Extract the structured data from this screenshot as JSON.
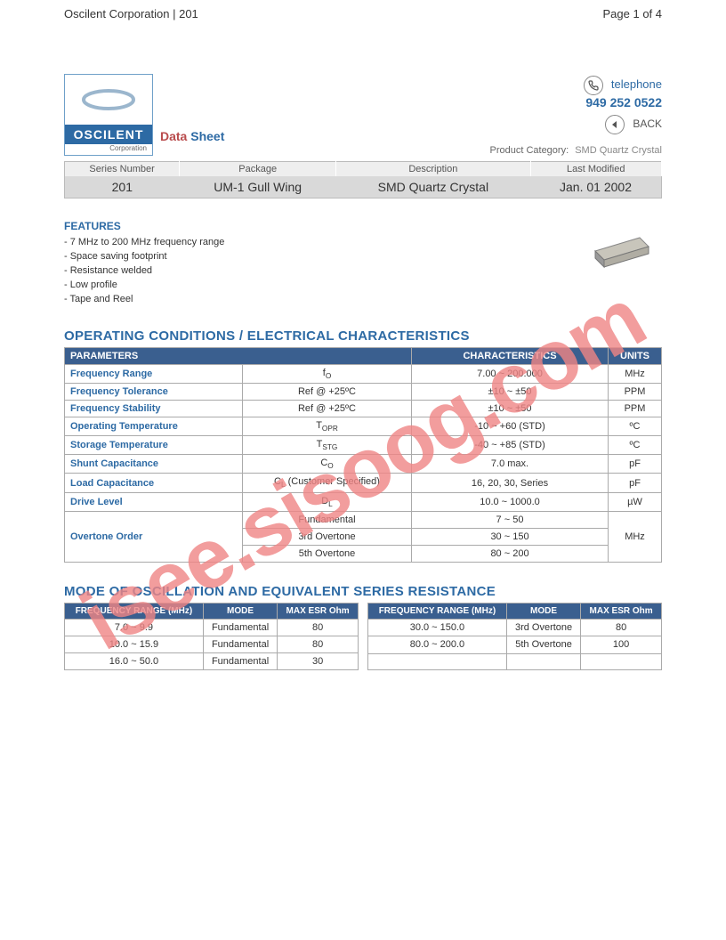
{
  "header": {
    "left": "Oscilent Corporation | 201",
    "right": "Page 1 of 4"
  },
  "logo": {
    "name": "OSCILENT",
    "corp": "Corporation"
  },
  "data_sheet": {
    "word1": "Data",
    "word2": "Sheet"
  },
  "contact": {
    "tel_label": "telephone",
    "tel_number": "949 252 0522",
    "back_label": "BACK"
  },
  "product_category": {
    "label": "Product Category:",
    "value": "SMD Quartz Crystal"
  },
  "info": {
    "headers": [
      "Series Number",
      "Package",
      "Description",
      "Last Modified"
    ],
    "values": [
      "201",
      "UM-1 Gull Wing",
      "SMD Quartz Crystal",
      "Jan. 01 2002"
    ]
  },
  "features": {
    "title": "FEATURES",
    "items": [
      "- 7 MHz to 200 MHz frequency range",
      "- Space saving footprint",
      "- Resistance welded",
      "- Low profile",
      "- Tape and Reel"
    ]
  },
  "sections": {
    "operating": "OPERATING CONDITIONS / ELECTRICAL CHARACTERISTICS",
    "mode": "MODE OF OSCILLATION AND EQUIVALENT SERIES RESISTANCE"
  },
  "spec": {
    "headers": {
      "param": "PARAMETERS",
      "char": "CHARACTERISTICS",
      "units": "UNITS"
    },
    "rows": [
      {
        "p": "Frequency Range",
        "s": "f",
        "sub": "O",
        "c": "7.00 ~ 200.000",
        "u": "MHz"
      },
      {
        "p": "Frequency Tolerance",
        "s": "Ref @ +25ºC",
        "c": "±10 ~ ±50",
        "u": "PPM"
      },
      {
        "p": "Frequency Stability",
        "s": "Ref @ +25ºC",
        "c": "±10 ~ ±50",
        "u": "PPM"
      },
      {
        "p": "Operating Temperature",
        "s": "T",
        "sub": "OPR",
        "c": "-10 ~ +60 (STD)",
        "u": "ºC"
      },
      {
        "p": "Storage Temperature",
        "s": "T",
        "sub": "STG",
        "c": "-40 ~ +85 (STD)",
        "u": "ºC"
      },
      {
        "p": "Shunt Capacitance",
        "s": "C",
        "sub": "O",
        "c": "7.0 max.",
        "u": "pF"
      },
      {
        "p": "Load Capacitance",
        "s": "C",
        "sub": "L",
        "stail": " (Customer Specified)",
        "c": "16, 20, 30, Series",
        "u": "pF"
      },
      {
        "p": "Drive Level",
        "s": "D",
        "sub": "L",
        "c": "10.0 ~ 1000.0",
        "u": "µW"
      }
    ],
    "overtone": {
      "p": "Overtone Order",
      "rows": [
        {
          "s": "Fundamental",
          "c": "7 ~ 50"
        },
        {
          "s": "3rd Overtone",
          "c": "30 ~ 150"
        },
        {
          "s": "5th Overtone",
          "c": "80 ~ 200"
        }
      ],
      "u": "MHz"
    }
  },
  "mode": {
    "headers": [
      "FREQUENCY RANGE (MHz)",
      "MODE",
      "MAX ESR Ohm"
    ],
    "left": [
      {
        "f": "7.0 ~ 9.9",
        "m": "Fundamental",
        "e": "80"
      },
      {
        "f": "10.0 ~ 15.9",
        "m": "Fundamental",
        "e": "80"
      },
      {
        "f": "16.0 ~ 50.0",
        "m": "Fundamental",
        "e": "30"
      }
    ],
    "right": [
      {
        "f": "30.0 ~ 150.0",
        "m": "3rd Overtone",
        "e": "80"
      },
      {
        "f": "80.0 ~ 200.0",
        "m": "5th Overtone",
        "e": "100"
      },
      {
        "f": "",
        "m": "",
        "e": ""
      }
    ]
  },
  "watermark": "isee.sisoog.com",
  "colors": {
    "header_bg": "#3a5f8f",
    "accent": "#2d6aa4",
    "watermark": "#f08585",
    "border": "#aaaaaa",
    "info_row_bg": "#d9d9d9"
  }
}
